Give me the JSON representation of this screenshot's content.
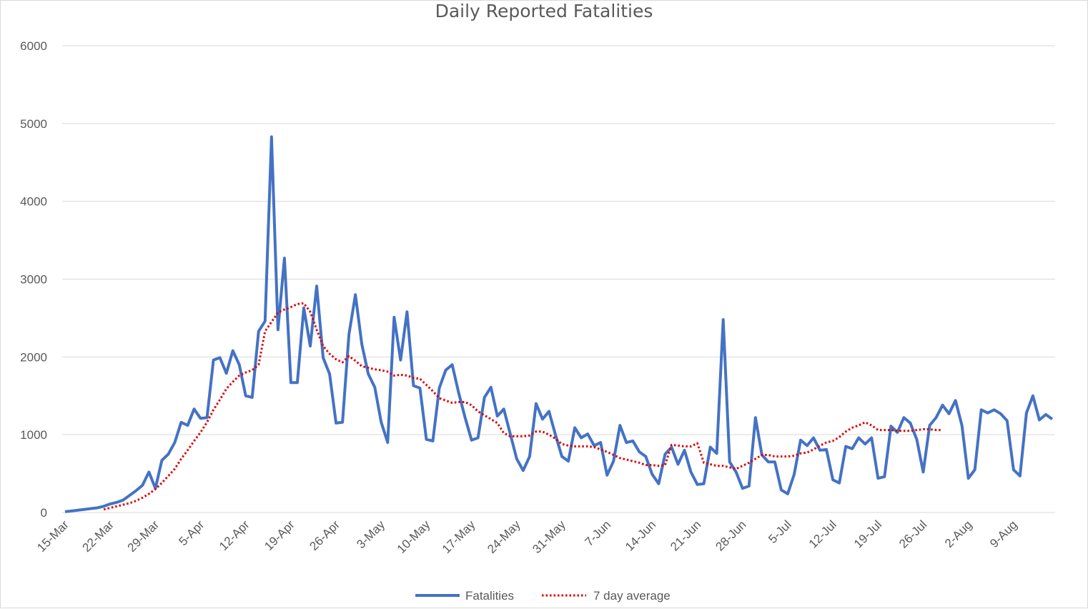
{
  "chart_data": {
    "type": "line",
    "title": "Daily Reported Fatalities",
    "xlabel": "",
    "ylabel": "",
    "ylim": [
      0,
      6000
    ],
    "yticks": [
      0,
      1000,
      2000,
      3000,
      4000,
      5000,
      6000
    ],
    "x_tick_labels": [
      "15-Mar",
      "22-Mar",
      "29-Mar",
      "5-Apr",
      "12-Apr",
      "19-Apr",
      "26-Apr",
      "3-May",
      "10-May",
      "17-May",
      "24-May",
      "31-May",
      "7-Jun",
      "14-Jun",
      "21-Jun",
      "28-Jun",
      "5-Jul",
      "12-Jul",
      "19-Jul",
      "26-Jul",
      "2-Aug",
      "9-Aug"
    ],
    "x_start": "15-Mar",
    "x_end": "15-Aug",
    "grid": true,
    "legend_position": "bottom",
    "colors": {
      "fatalities": "#4472c4",
      "average": "#e00000"
    },
    "series": [
      {
        "name": "Fatalities",
        "style": "solid",
        "values": [
          10,
          20,
          30,
          40,
          50,
          60,
          80,
          110,
          130,
          160,
          220,
          280,
          350,
          520,
          310,
          670,
          750,
          900,
          1160,
          1120,
          1330,
          1210,
          1220,
          1960,
          1990,
          1790,
          2080,
          1900,
          1500,
          1480,
          2330,
          2460,
          4830,
          2350,
          3270,
          1670,
          1670,
          2630,
          2140,
          2910,
          1990,
          1780,
          1150,
          1160,
          2290,
          2800,
          2160,
          1780,
          1610,
          1160,
          900,
          2510,
          1960,
          2580,
          1630,
          1600,
          940,
          920,
          1600,
          1830,
          1900,
          1540,
          1220,
          930,
          960,
          1480,
          1610,
          1240,
          1330,
          1010,
          690,
          540,
          720,
          1400,
          1200,
          1300,
          1000,
          720,
          660,
          1090,
          960,
          1010,
          860,
          900,
          480,
          660,
          1120,
          900,
          920,
          780,
          720,
          490,
          370,
          750,
          840,
          620,
          800,
          520,
          360,
          370,
          840,
          760,
          2480,
          650,
          520,
          310,
          340,
          1220,
          740,
          650,
          650,
          290,
          240,
          490,
          930,
          860,
          960,
          800,
          810,
          420,
          380,
          850,
          820,
          960,
          880,
          960,
          440,
          460,
          1110,
          1030,
          1220,
          1150,
          940,
          520,
          1120,
          1220,
          1380,
          1270,
          1440,
          1120,
          440,
          550,
          1320,
          1280,
          1320,
          1270,
          1180,
          550,
          470,
          1280,
          1500,
          1190,
          1260,
          1200
        ]
      },
      {
        "name": "7 day average",
        "style": "dotted",
        "start_index": 6,
        "values": [
          40,
          60,
          80,
          100,
          120,
          150,
          190,
          240,
          300,
          380,
          470,
          560,
          690,
          800,
          920,
          1030,
          1160,
          1320,
          1450,
          1590,
          1680,
          1760,
          1800,
          1830,
          1900,
          2330,
          2450,
          2570,
          2610,
          2640,
          2680,
          2690,
          2580,
          2350,
          2140,
          2040,
          1970,
          1930,
          2010,
          1950,
          1880,
          1860,
          1840,
          1830,
          1810,
          1760,
          1770,
          1760,
          1730,
          1720,
          1640,
          1560,
          1470,
          1440,
          1410,
          1420,
          1420,
          1380,
          1300,
          1250,
          1200,
          1150,
          1020,
          980,
          980,
          980,
          990,
          1040,
          1040,
          1000,
          950,
          880,
          860,
          850,
          850,
          850,
          840,
          810,
          780,
          740,
          700,
          680,
          660,
          640,
          610,
          610,
          600,
          610,
          870,
          860,
          850,
          850,
          890,
          640,
          620,
          600,
          600,
          580,
          560,
          600,
          640,
          690,
          740,
          740,
          720,
          720,
          720,
          730,
          760,
          770,
          810,
          860,
          900,
          920,
          970,
          1040,
          1090,
          1120,
          1160,
          1120,
          1060,
          1060,
          1060,
          1050,
          1050,
          1050,
          1060,
          1070,
          1070,
          1060,
          1060
        ]
      }
    ]
  }
}
